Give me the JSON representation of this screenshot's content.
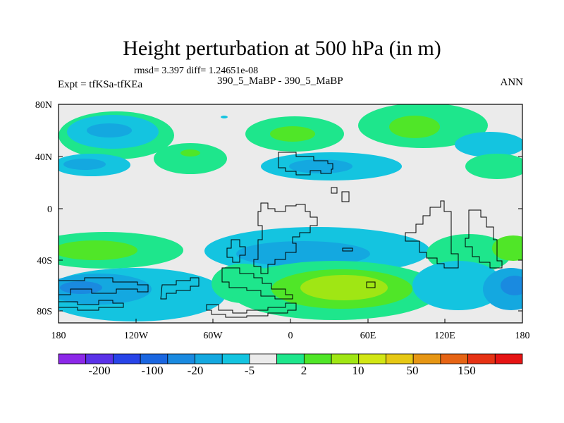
{
  "title": "Height perturbation at 500 hPa (in m)",
  "stats": "rmsd= 3.397 diff= 1.24651e-08",
  "left_label": "Expt = tfKSa-tfKEa",
  "subtitle": "390_5_MaBP - 390_5_MaBP",
  "season": "ANN",
  "lat_ticks": [
    "80N",
    "40N",
    "0",
    "40S",
    "80S"
  ],
  "lon_ticks": [
    "180",
    "120W",
    "60W",
    "0",
    "60E",
    "120E",
    "180"
  ],
  "colorbar": {
    "colors": [
      "#8c28e8",
      "#5a32e8",
      "#2844e8",
      "#1a66e0",
      "#1a8ae0",
      "#14a8e0",
      "#14c4e0",
      "#ebebeb",
      "#1ee68c",
      "#50e628",
      "#a0e614",
      "#d2e614",
      "#e6c814",
      "#e69614",
      "#e66414",
      "#e63214",
      "#e61414"
    ],
    "labels": [
      "-200",
      "-100",
      "-20",
      "-5",
      "2",
      "10",
      "50",
      "150"
    ]
  },
  "colors": {
    "background": "#ebebeb",
    "blue_dark": "#1a8ae0",
    "blue": "#14a8e0",
    "cyan": "#14c4e0",
    "green_light": "#1ee68c",
    "green": "#50e628",
    "yellow_green": "#a0e614"
  }
}
